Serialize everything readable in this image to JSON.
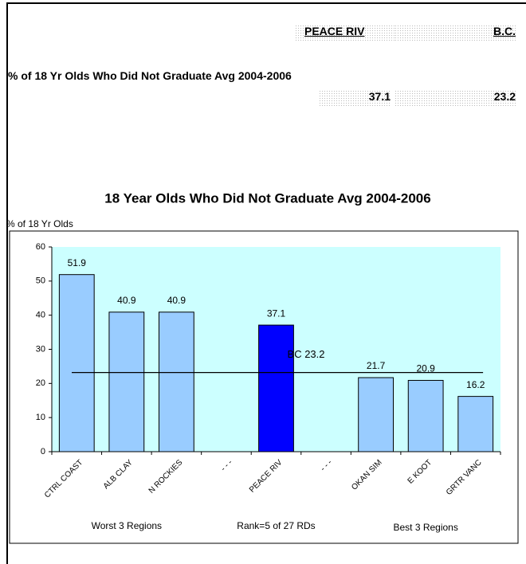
{
  "header": {
    "columns": [
      "PEACE RIV",
      "B.C."
    ],
    "row_label": "% of 18 Yr Olds Who Did Not Graduate Avg 2004-2006",
    "values": [
      37.1,
      23.2
    ]
  },
  "chart_data": {
    "type": "bar",
    "title": "18 Year Olds Who Did Not Graduate Avg 2004-2006",
    "y_label": "% of 18 Yr Olds",
    "categories": [
      "CTRL COAST",
      "ALB CLAY",
      "N ROCKIES",
      "- - -",
      "PEACE RIV",
      "- - -",
      "OKAN SIM",
      "E KOOT",
      "GRTR VANC"
    ],
    "values": [
      51.9,
      40.9,
      40.9,
      null,
      37.1,
      null,
      21.7,
      20.9,
      16.2
    ],
    "colors": [
      "#99ccff",
      "#99ccff",
      "#99ccff",
      null,
      "#0000ff",
      null,
      "#99ccff",
      "#99ccff",
      "#99ccff"
    ],
    "ylim": [
      0,
      60
    ],
    "yticks": [
      0,
      10,
      20,
      30,
      40,
      50,
      60
    ],
    "reference_line": {
      "value": 23.2,
      "label": "BC 23.2"
    },
    "group_labels": [
      "Worst 3 Regions",
      "Rank=5 of 27 RDs",
      "Best 3 Regions"
    ],
    "plot_background": "#ccffff"
  }
}
